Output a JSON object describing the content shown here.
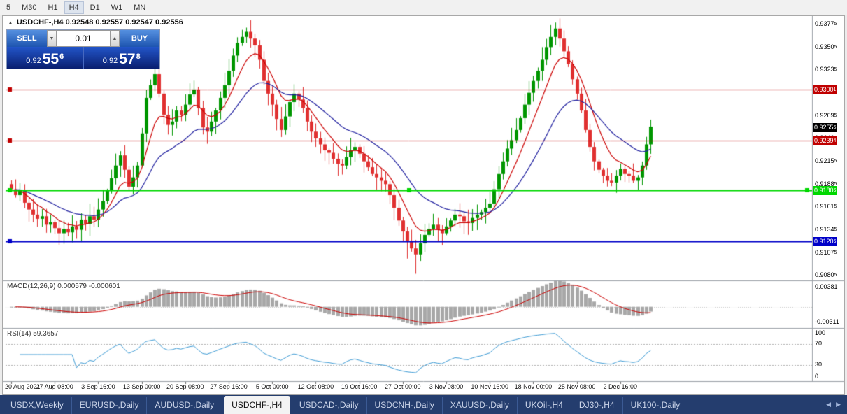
{
  "toolbar": {
    "timeframes": [
      "5",
      "M30",
      "H1",
      "H4",
      "D1",
      "W1",
      "MN"
    ],
    "active_timeframe": "H4"
  },
  "chart_header": {
    "collapse_icon": "▲",
    "title": "USDCHF-,H4 0.92548 0.92557 0.92547 0.92556"
  },
  "one_click_trading": {
    "sell_label": "SELL",
    "buy_label": "BUY",
    "lot_size": "0.01",
    "lot_decrease_icon": "▼",
    "lot_increase_icon": "▲",
    "sell_price": {
      "prefix": "0.92",
      "big": "55",
      "sup": "6"
    },
    "buy_price": {
      "prefix": "0.92",
      "big": "57",
      "sup": "8"
    },
    "accent_blue": "#1e55b0",
    "panel_navy": "#0a1f70"
  },
  "chart_data": {
    "type": "candlestick",
    "symbol": "USDCHF-",
    "timeframe": "H4",
    "quotes": {
      "open": "0.92548",
      "high": "0.92557",
      "low": "0.92547",
      "close": "0.92556"
    },
    "colors": {
      "up": "#009600",
      "down": "#e03030",
      "background": "#ffffff"
    },
    "price_axis": {
      "min": 0.9075,
      "max": 0.9385,
      "ticks": [
        0.93775,
        0.93505,
        0.93235,
        0.92965,
        0.92695,
        0.92425,
        0.92155,
        0.91885,
        0.91615,
        0.91345,
        0.91075,
        0.90805
      ]
    },
    "first_open": 0.9188,
    "closes": [
      0.9182,
      0.9175,
      0.918,
      0.9166,
      0.9158,
      0.9152,
      0.9147,
      0.915,
      0.914,
      0.9143,
      0.9136,
      0.913,
      0.9135,
      0.9131,
      0.9138,
      0.9134,
      0.9146,
      0.9141,
      0.915,
      0.9146,
      0.9158,
      0.9168,
      0.918,
      0.9195,
      0.921,
      0.9222,
      0.9205,
      0.9185,
      0.9196,
      0.921,
      0.9248,
      0.929,
      0.9305,
      0.9318,
      0.9295,
      0.927,
      0.9258,
      0.9262,
      0.9275,
      0.927,
      0.9282,
      0.9294,
      0.93,
      0.9278,
      0.9255,
      0.925,
      0.9262,
      0.9275,
      0.929,
      0.9305,
      0.9322,
      0.934,
      0.9355,
      0.9362,
      0.9368,
      0.936,
      0.9352,
      0.9335,
      0.931,
      0.9295,
      0.9282,
      0.9265,
      0.9252,
      0.9268,
      0.9285,
      0.9295,
      0.9288,
      0.9278,
      0.9262,
      0.925,
      0.9242,
      0.9235,
      0.9228,
      0.9225,
      0.9218,
      0.9212,
      0.921,
      0.922,
      0.9228,
      0.9232,
      0.9224,
      0.9215,
      0.9208,
      0.92,
      0.9196,
      0.9192,
      0.9188,
      0.9175,
      0.916,
      0.9145,
      0.9132,
      0.912,
      0.9112,
      0.9105,
      0.9118,
      0.9128,
      0.9135,
      0.914,
      0.9134,
      0.913,
      0.9138,
      0.9145,
      0.9152,
      0.915,
      0.9144,
      0.9142,
      0.9148,
      0.9152,
      0.9155,
      0.916,
      0.9165,
      0.9182,
      0.92,
      0.9215,
      0.923,
      0.924,
      0.9252,
      0.9266,
      0.9282,
      0.9296,
      0.931,
      0.9322,
      0.9335,
      0.935,
      0.9362,
      0.9372,
      0.936,
      0.9345,
      0.933,
      0.9312,
      0.9295,
      0.9275,
      0.9252,
      0.9232,
      0.9215,
      0.9205,
      0.9198,
      0.9192,
      0.919,
      0.9198,
      0.9206,
      0.92,
      0.9198,
      0.9192,
      0.9196,
      0.921,
      0.9235,
      0.9256
    ],
    "wick_overrides": {
      "54": {
        "high": 0.9373
      },
      "91": {
        "low": 0.91
      },
      "93": {
        "low": 0.9082
      },
      "124": {
        "high": 0.9376
      },
      "125": {
        "high": 0.9379
      }
    },
    "moving_averages": [
      {
        "period": 8,
        "color": "#cc0000"
      },
      {
        "period": 22,
        "color": "#2020a0"
      }
    ],
    "hlines": [
      {
        "price": 0.93001,
        "label": "0.93001",
        "color": "#c00000",
        "width": 1,
        "handles": "left"
      },
      {
        "price": 0.92394,
        "label": "0.92394",
        "color": "#c00000",
        "width": 1,
        "handles": "left"
      },
      {
        "price": 0.91806,
        "label": "0.91806",
        "color": "#00d800",
        "width": 2,
        "handles": "three"
      },
      {
        "price": 0.91206,
        "label": "0.91206",
        "color": "#0000c8",
        "width": 2,
        "handles": "left"
      }
    ],
    "current_price": {
      "value": 0.92556,
      "label": "0.92556",
      "bg": "#000000"
    },
    "x_axis": {
      "labels": [
        "20 Aug 2021",
        "27 Aug 08:00",
        "3 Sep 16:00",
        "13 Sep 00:00",
        "20 Sep 08:00",
        "27 Sep 16:00",
        "5 Oct 00:00",
        "12 Oct 08:00",
        "19 Oct 16:00",
        "27 Oct 00:00",
        "3 Nov 08:00",
        "10 Nov 16:00",
        "18 Nov 00:00",
        "25 Nov 08:00",
        "2 Dec 16:00"
      ],
      "label_indices": [
        0,
        10,
        20,
        30,
        40,
        50,
        60,
        70,
        80,
        90,
        100,
        110,
        120,
        130,
        140
      ]
    },
    "macd": {
      "label": "MACD(12,26,9) 0.000579 -0.000601",
      "params": [
        12,
        26,
        9
      ],
      "values_text": [
        "0.000579",
        "-0.000601"
      ],
      "axis_ticks": [
        0.00381,
        -0.00311
      ],
      "range": [
        -0.004,
        0.005
      ],
      "hist_color": "#a8a8a8",
      "signal_color": "#cc0000"
    },
    "rsi": {
      "label": "RSI(14) 59.3657",
      "period": 14,
      "value": 59.3657,
      "axis_ticks": [
        100,
        70,
        30,
        0
      ],
      "levels": [
        70,
        30
      ],
      "color": "#3d9bd5"
    }
  },
  "tab_bar": {
    "scroll_left_icon": "◀",
    "scroll_right_icon": "▶",
    "tabs": [
      {
        "label": "USDX,Weekly",
        "active": false
      },
      {
        "label": "EURUSD-,Daily",
        "active": false
      },
      {
        "label": "AUDUSD-,Daily",
        "active": false
      },
      {
        "label": "USDCHF-,H4",
        "active": true
      },
      {
        "label": "USDCAD-,Daily",
        "active": false
      },
      {
        "label": "USDCNH-,Daily",
        "active": false
      },
      {
        "label": "XAUUSD-,Daily",
        "active": false
      },
      {
        "label": "UKOil-,H4",
        "active": false
      },
      {
        "label": "DJ30-,H4",
        "active": false
      },
      {
        "label": "UK100-,Daily",
        "active": false
      }
    ]
  }
}
